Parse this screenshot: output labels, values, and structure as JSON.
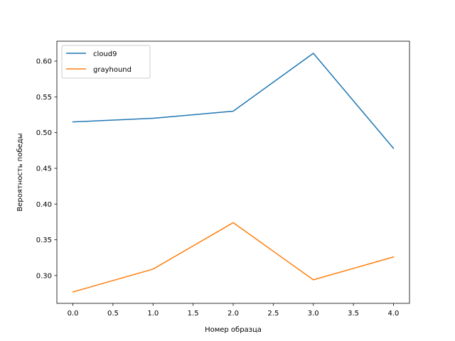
{
  "chart_data": {
    "type": "line",
    "title": "",
    "xlabel": "Номер образца",
    "ylabel": "Вероятность победы",
    "x": [
      0,
      1,
      2,
      3,
      4
    ],
    "xlim": [
      -0.2,
      4.2
    ],
    "ylim": [
      0.2611,
      0.6279
    ],
    "xticks": [
      "0.0",
      "0.5",
      "1.0",
      "1.5",
      "2.0",
      "2.5",
      "3.0",
      "3.5",
      "4.0"
    ],
    "xtick_values": [
      0,
      0.5,
      1,
      1.5,
      2,
      2.5,
      3,
      3.5,
      4
    ],
    "yticks": [
      "0.30",
      "0.35",
      "0.40",
      "0.45",
      "0.50",
      "0.55",
      "0.60"
    ],
    "ytick_values": [
      0.3,
      0.35,
      0.4,
      0.45,
      0.5,
      0.55,
      0.6
    ],
    "grid": false,
    "legend_position": "top-left",
    "series": [
      {
        "name": "cloud9",
        "color": "#1f77b4",
        "values": [
          0.515,
          0.52,
          0.53,
          0.611,
          0.478
        ]
      },
      {
        "name": "grayhound",
        "color": "#ff7f0e",
        "values": [
          0.277,
          0.309,
          0.374,
          0.294,
          0.326
        ]
      }
    ]
  }
}
